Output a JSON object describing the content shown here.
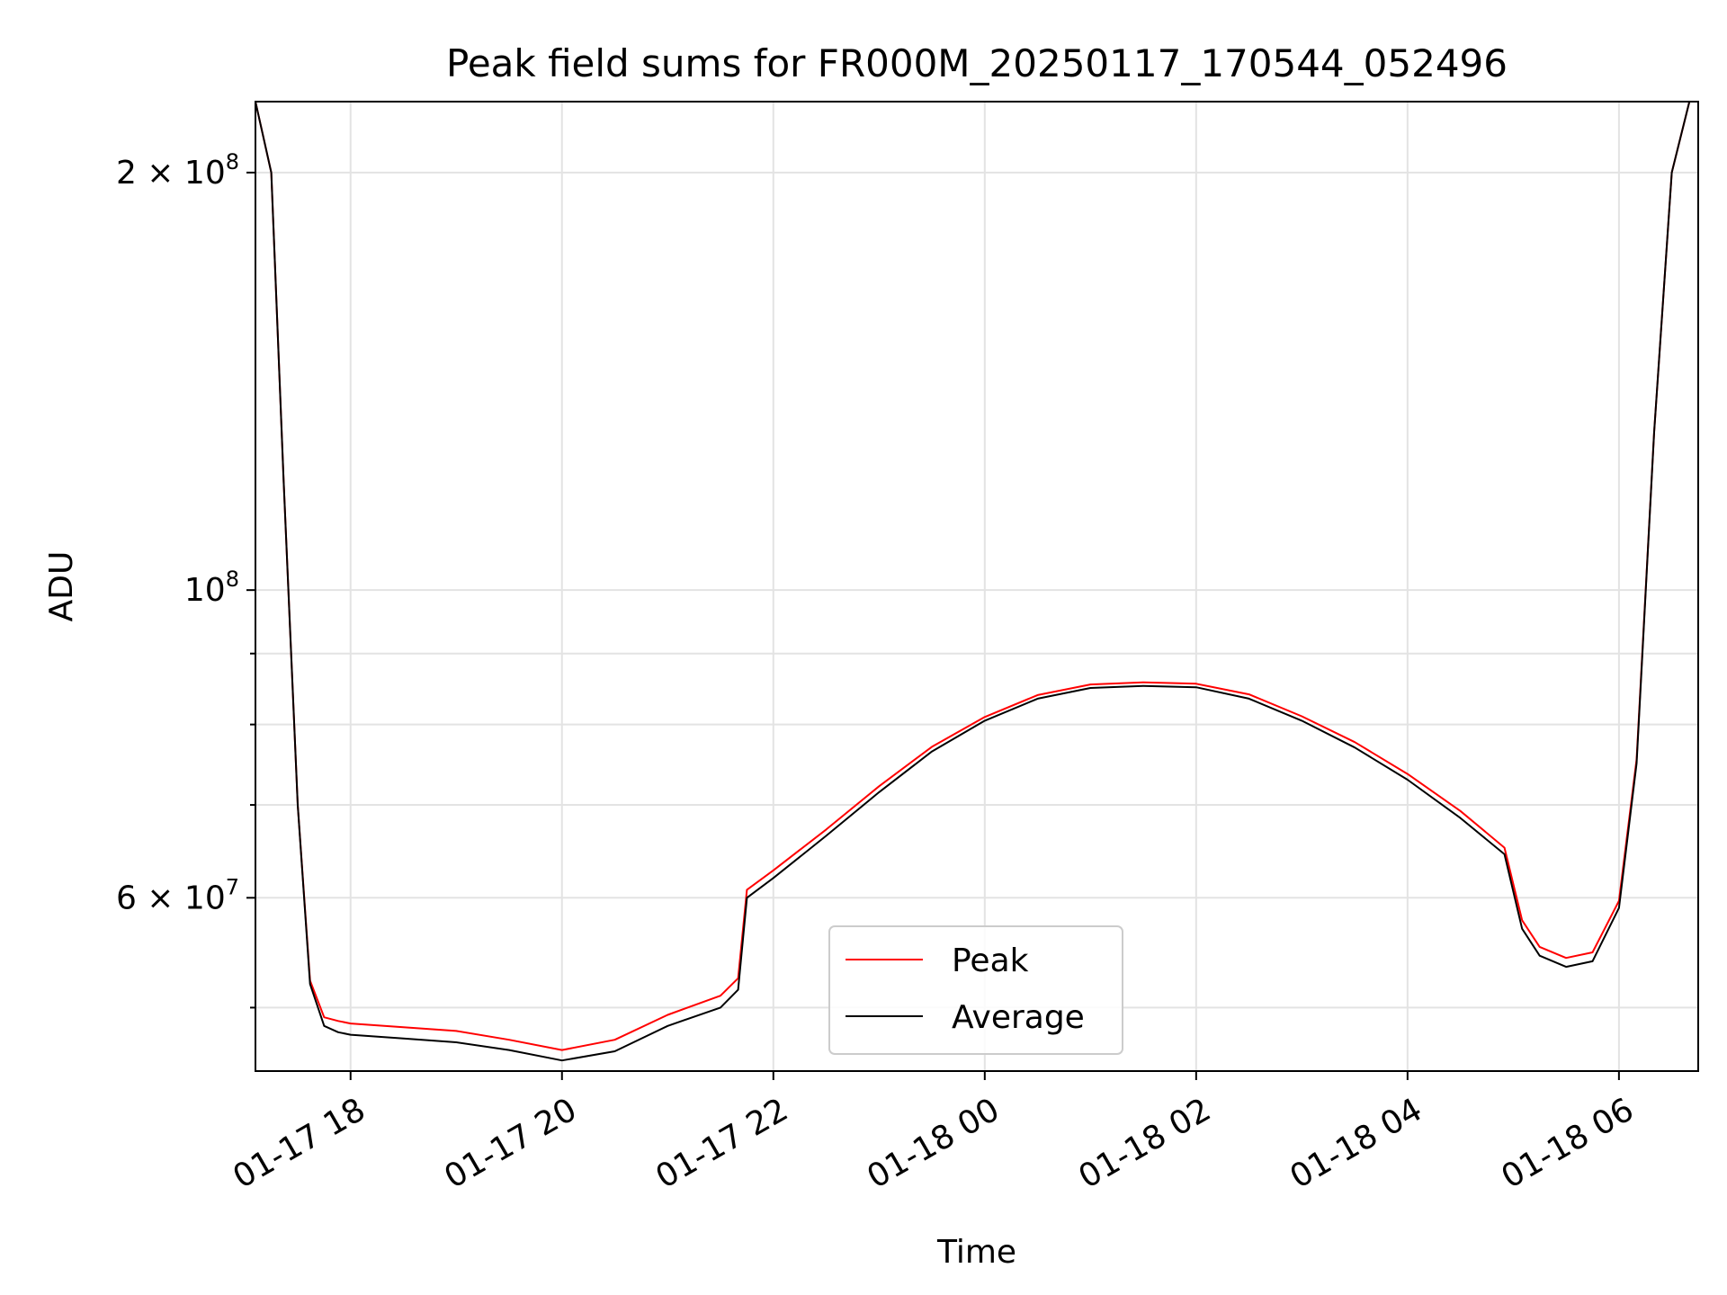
{
  "chart_data": {
    "type": "line",
    "title": "Peak field sums for FR000M_20250117_170544_052496",
    "xlabel": "Time",
    "ylabel": "ADU",
    "y_scale": "log",
    "ylim": [
      45000000,
      225000000
    ],
    "xlim": [
      "2025-01-17 17:06",
      "2025-01-18 06:45"
    ],
    "grid": true,
    "legend_position": "bottom-center",
    "x_tick_labels": [
      "01-17 18",
      "01-17 20",
      "01-17 22",
      "01-18 00",
      "01-18 02",
      "01-18 04",
      "01-18 06"
    ],
    "x_tick_values": [
      "2025-01-17 18:00",
      "2025-01-17 20:00",
      "2025-01-17 22:00",
      "2025-01-18 00:00",
      "2025-01-18 02:00",
      "2025-01-18 04:00",
      "2025-01-18 06:00"
    ],
    "y_major_ticks": [
      {
        "value": 60000000,
        "mantissa": "6",
        "exp": "7",
        "label": "6 × 10^7"
      },
      {
        "value": 100000000,
        "mantissa": "",
        "exp": "8",
        "label": "10^8"
      },
      {
        "value": 200000000,
        "mantissa": "2",
        "exp": "8",
        "label": "2 × 10^8"
      }
    ],
    "y_minor_ticks": [
      50000000,
      70000000,
      80000000,
      90000000
    ],
    "series": [
      {
        "name": "Average",
        "color": "#000000",
        "x": [
          "2025-01-17 17:06",
          "2025-01-17 17:15",
          "2025-01-17 17:22",
          "2025-01-17 17:30",
          "2025-01-17 17:37",
          "2025-01-17 17:45",
          "2025-01-17 17:53",
          "2025-01-17 18:00",
          "2025-01-17 18:30",
          "2025-01-17 19:00",
          "2025-01-17 19:30",
          "2025-01-17 20:00",
          "2025-01-17 20:30",
          "2025-01-17 21:00",
          "2025-01-17 21:30",
          "2025-01-17 21:40",
          "2025-01-17 21:45",
          "2025-01-17 22:00",
          "2025-01-17 22:30",
          "2025-01-17 23:00",
          "2025-01-17 23:30",
          "2025-01-18 00:00",
          "2025-01-18 00:30",
          "2025-01-18 01:00",
          "2025-01-18 01:30",
          "2025-01-18 02:00",
          "2025-01-18 02:30",
          "2025-01-18 03:00",
          "2025-01-18 03:30",
          "2025-01-18 04:00",
          "2025-01-18 04:30",
          "2025-01-18 04:55",
          "2025-01-18 05:05",
          "2025-01-18 05:15",
          "2025-01-18 05:30",
          "2025-01-18 05:45",
          "2025-01-18 06:00",
          "2025-01-18 06:10",
          "2025-01-18 06:20",
          "2025-01-18 06:30",
          "2025-01-18 06:40"
        ],
        "y": [
          225000000,
          200000000,
          120000000,
          70000000,
          52000000,
          48500000,
          48000000,
          47800000,
          47500000,
          47200000,
          46600000,
          45800000,
          46500000,
          48500000,
          50000000,
          51500000,
          60000000,
          62000000,
          66500000,
          71500000,
          76500000,
          80500000,
          83500000,
          85000000,
          85300000,
          85100000,
          83500000,
          80500000,
          77000000,
          73000000,
          68500000,
          64500000,
          57000000,
          54500000,
          53500000,
          54000000,
          59000000,
          75000000,
          130000000,
          200000000,
          225000000
        ]
      },
      {
        "name": "Peak",
        "color": "#ff0000",
        "x": [
          "2025-01-17 17:06",
          "2025-01-17 17:15",
          "2025-01-17 17:22",
          "2025-01-17 17:30",
          "2025-01-17 17:37",
          "2025-01-17 17:45",
          "2025-01-17 17:53",
          "2025-01-17 18:00",
          "2025-01-17 18:30",
          "2025-01-17 19:00",
          "2025-01-17 19:30",
          "2025-01-17 20:00",
          "2025-01-17 20:30",
          "2025-01-17 21:00",
          "2025-01-17 21:30",
          "2025-01-17 21:40",
          "2025-01-17 21:45",
          "2025-01-17 22:00",
          "2025-01-17 22:30",
          "2025-01-17 23:00",
          "2025-01-17 23:30",
          "2025-01-18 00:00",
          "2025-01-18 00:30",
          "2025-01-18 01:00",
          "2025-01-18 01:30",
          "2025-01-18 02:00",
          "2025-01-18 02:30",
          "2025-01-18 03:00",
          "2025-01-18 03:30",
          "2025-01-18 04:00",
          "2025-01-18 04:30",
          "2025-01-18 04:55",
          "2025-01-18 05:05",
          "2025-01-18 05:15",
          "2025-01-18 05:30",
          "2025-01-18 05:45",
          "2025-01-18 06:00",
          "2025-01-18 06:10",
          "2025-01-18 06:20",
          "2025-01-18 06:30",
          "2025-01-18 06:40"
        ],
        "y": [
          225000000,
          200000000,
          120000000,
          70000000,
          52300000,
          49200000,
          48900000,
          48700000,
          48400000,
          48100000,
          47400000,
          46600000,
          47400000,
          49400000,
          51000000,
          52500000,
          60800000,
          62800000,
          67200000,
          72200000,
          77100000,
          81000000,
          84000000,
          85500000,
          85800000,
          85600000,
          84100000,
          81100000,
          77700000,
          73700000,
          69300000,
          65200000,
          57800000,
          55300000,
          54300000,
          54800000,
          59700000,
          75500000,
          130000000,
          200000000,
          225000000
        ]
      }
    ],
    "legend": [
      {
        "label": "Peak",
        "color": "#ff0000"
      },
      {
        "label": "Average",
        "color": "#000000"
      }
    ]
  }
}
